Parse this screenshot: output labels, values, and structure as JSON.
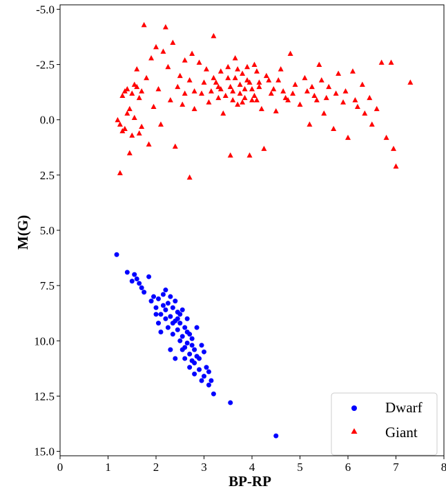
{
  "chart_data": {
    "type": "scatter",
    "xlabel": "BP-RP",
    "ylabel": "M(G)",
    "xlim": [
      0,
      8
    ],
    "ylim": [
      15.2,
      -5.2
    ],
    "y_inverted": true,
    "grid": false,
    "legend_position": "bottom-right",
    "x_ticks": [
      "0",
      "1",
      "2",
      "3",
      "4",
      "5",
      "6",
      "7",
      "8"
    ],
    "y_ticks": [
      "-5.0",
      "-2.5",
      "0.0",
      "2.5",
      "5.0",
      "7.5",
      "10.0",
      "12.5",
      "15.0"
    ],
    "series": [
      {
        "name": "Dwarf",
        "marker": "circle",
        "color": "#0000ff",
        "points": [
          [
            1.18,
            6.1
          ],
          [
            1.4,
            6.9
          ],
          [
            1.5,
            7.3
          ],
          [
            1.6,
            7.2
          ],
          [
            1.65,
            7.4
          ],
          [
            1.75,
            7.8
          ],
          [
            1.85,
            7.1
          ],
          [
            1.9,
            8.2
          ],
          [
            1.95,
            8.0
          ],
          [
            2.0,
            8.5
          ],
          [
            2.05,
            8.1
          ],
          [
            2.1,
            8.8
          ],
          [
            2.15,
            7.9
          ],
          [
            2.2,
            7.7
          ],
          [
            2.2,
            9.0
          ],
          [
            2.25,
            8.3
          ],
          [
            2.25,
            9.4
          ],
          [
            2.3,
            8.0
          ],
          [
            2.3,
            8.9
          ],
          [
            2.35,
            9.7
          ],
          [
            2.35,
            8.5
          ],
          [
            2.4,
            9.1
          ],
          [
            2.4,
            8.2
          ],
          [
            2.45,
            9.5
          ],
          [
            2.45,
            8.7
          ],
          [
            2.5,
            10.0
          ],
          [
            2.5,
            9.2
          ],
          [
            2.55,
            8.6
          ],
          [
            2.55,
            9.8
          ],
          [
            2.6,
            10.3
          ],
          [
            2.6,
            9.4
          ],
          [
            2.65,
            9.0
          ],
          [
            2.65,
            10.1
          ],
          [
            2.7,
            10.6
          ],
          [
            2.7,
            9.7
          ],
          [
            2.75,
            10.9
          ],
          [
            2.75,
            9.9
          ],
          [
            2.8,
            10.4
          ],
          [
            2.8,
            11.0
          ],
          [
            2.85,
            10.7
          ],
          [
            2.9,
            11.3
          ],
          [
            2.95,
            10.2
          ],
          [
            3.0,
            11.6
          ],
          [
            3.05,
            11.2
          ],
          [
            3.1,
            12.0
          ],
          [
            3.15,
            11.8
          ],
          [
            3.2,
            12.4
          ],
          [
            3.55,
            12.8
          ],
          [
            4.5,
            14.3
          ],
          [
            2.1,
            9.6
          ],
          [
            2.3,
            10.4
          ],
          [
            2.15,
            8.4
          ],
          [
            2.4,
            10.8
          ],
          [
            2.0,
            8.8
          ],
          [
            2.5,
            8.8
          ],
          [
            2.6,
            10.8
          ],
          [
            2.7,
            11.2
          ],
          [
            2.85,
            9.4
          ],
          [
            1.7,
            7.6
          ],
          [
            1.55,
            7.0
          ],
          [
            2.35,
            9.2
          ],
          [
            2.45,
            9.0
          ],
          [
            2.55,
            10.4
          ],
          [
            2.65,
            9.6
          ],
          [
            2.75,
            10.2
          ],
          [
            2.9,
            10.8
          ],
          [
            3.0,
            10.5
          ],
          [
            2.2,
            8.6
          ],
          [
            2.05,
            9.2
          ],
          [
            2.95,
            11.8
          ],
          [
            3.1,
            11.4
          ],
          [
            2.8,
            11.5
          ]
        ]
      },
      {
        "name": "Giant",
        "marker": "triangle",
        "color": "#ff0000",
        "points": [
          [
            1.2,
            0.0
          ],
          [
            1.25,
            2.4
          ],
          [
            1.3,
            0.5
          ],
          [
            1.35,
            -1.3
          ],
          [
            1.4,
            -0.3
          ],
          [
            1.45,
            1.5
          ],
          [
            1.5,
            0.7
          ],
          [
            1.55,
            -1.6
          ],
          [
            1.6,
            -2.3
          ],
          [
            1.65,
            -1.0
          ],
          [
            1.7,
            0.3
          ],
          [
            1.75,
            -4.3
          ],
          [
            1.8,
            -1.9
          ],
          [
            1.85,
            1.1
          ],
          [
            1.9,
            -2.8
          ],
          [
            1.95,
            -0.6
          ],
          [
            2.0,
            -3.3
          ],
          [
            2.05,
            -1.4
          ],
          [
            2.1,
            0.2
          ],
          [
            2.15,
            -3.1
          ],
          [
            2.2,
            -4.2
          ],
          [
            2.25,
            -2.4
          ],
          [
            2.3,
            -0.9
          ],
          [
            2.35,
            -3.5
          ],
          [
            2.4,
            1.2
          ],
          [
            2.5,
            -2.0
          ],
          [
            2.6,
            -1.2
          ],
          [
            2.7,
            2.6
          ],
          [
            2.75,
            -3.0
          ],
          [
            2.8,
            -0.5
          ],
          [
            2.9,
            -2.6
          ],
          [
            3.0,
            -1.7
          ],
          [
            3.1,
            -0.8
          ],
          [
            3.2,
            -3.8
          ],
          [
            3.3,
            -1.5
          ],
          [
            3.35,
            -2.2
          ],
          [
            3.4,
            -0.3
          ],
          [
            3.5,
            -1.9
          ],
          [
            3.55,
            1.6
          ],
          [
            3.6,
            -1.3
          ],
          [
            3.65,
            -2.8
          ],
          [
            3.7,
            -0.7
          ],
          [
            3.75,
            -1.6
          ],
          [
            3.8,
            -2.1
          ],
          [
            3.85,
            -1.0
          ],
          [
            3.9,
            -1.8
          ],
          [
            3.95,
            1.6
          ],
          [
            4.0,
            -1.4
          ],
          [
            4.05,
            -2.5
          ],
          [
            4.1,
            -0.9
          ],
          [
            4.15,
            -1.7
          ],
          [
            4.2,
            -0.5
          ],
          [
            4.25,
            1.3
          ],
          [
            4.3,
            -2.0
          ],
          [
            4.4,
            -1.2
          ],
          [
            4.5,
            -0.4
          ],
          [
            4.6,
            -2.3
          ],
          [
            4.7,
            -1.0
          ],
          [
            4.8,
            -3.0
          ],
          [
            4.9,
            -1.6
          ],
          [
            5.0,
            -0.7
          ],
          [
            5.1,
            -1.9
          ],
          [
            5.2,
            0.2
          ],
          [
            5.3,
            -1.1
          ],
          [
            5.4,
            -2.5
          ],
          [
            5.5,
            -0.3
          ],
          [
            5.6,
            -1.5
          ],
          [
            5.7,
            0.4
          ],
          [
            5.8,
            -2.1
          ],
          [
            5.9,
            -0.8
          ],
          [
            6.0,
            0.8
          ],
          [
            6.1,
            -2.2
          ],
          [
            6.2,
            -0.6
          ],
          [
            6.3,
            -1.6
          ],
          [
            6.5,
            0.2
          ],
          [
            6.6,
            -0.5
          ],
          [
            6.7,
            -2.6
          ],
          [
            6.8,
            0.8
          ],
          [
            6.9,
            -2.6
          ],
          [
            6.95,
            1.3
          ],
          [
            7.0,
            2.1
          ],
          [
            7.3,
            -1.7
          ],
          [
            3.45,
            -1.1
          ],
          [
            3.55,
            -1.5
          ],
          [
            3.65,
            -1.9
          ],
          [
            3.75,
            -1.2
          ],
          [
            3.85,
            -1.4
          ],
          [
            3.95,
            -1.7
          ],
          [
            4.05,
            -1.1
          ],
          [
            4.15,
            -1.5
          ],
          [
            3.3,
            -1.0
          ],
          [
            3.5,
            -2.4
          ],
          [
            3.7,
            -2.3
          ],
          [
            3.9,
            -2.4
          ],
          [
            4.1,
            -2.2
          ],
          [
            3.6,
            -0.9
          ],
          [
            3.8,
            -0.8
          ],
          [
            4.0,
            -0.9
          ],
          [
            3.2,
            -1.9
          ],
          [
            4.35,
            -1.8
          ],
          [
            2.95,
            -1.2
          ],
          [
            3.05,
            -2.3
          ],
          [
            3.15,
            -1.3
          ],
          [
            3.25,
            -1.7
          ],
          [
            3.35,
            -1.4
          ],
          [
            4.45,
            -1.4
          ],
          [
            4.55,
            -1.8
          ],
          [
            4.65,
            -1.3
          ],
          [
            4.75,
            -0.9
          ],
          [
            4.85,
            -1.2
          ],
          [
            2.7,
            -1.8
          ],
          [
            2.6,
            -2.7
          ],
          [
            2.45,
            -1.5
          ],
          [
            2.55,
            -0.7
          ],
          [
            2.8,
            -1.3
          ],
          [
            1.4,
            -1.4
          ],
          [
            1.5,
            -1.2
          ],
          [
            1.6,
            -1.5
          ],
          [
            1.7,
            -1.3
          ],
          [
            1.3,
            -1.1
          ],
          [
            1.45,
            -0.5
          ],
          [
            1.55,
            -0.1
          ],
          [
            1.65,
            0.6
          ],
          [
            1.25,
            0.2
          ],
          [
            1.35,
            0.4
          ],
          [
            5.15,
            -1.3
          ],
          [
            5.35,
            -0.9
          ],
          [
            5.55,
            -1.0
          ],
          [
            5.75,
            -1.2
          ],
          [
            5.95,
            -1.3
          ],
          [
            6.15,
            -0.9
          ],
          [
            6.35,
            -0.3
          ],
          [
            6.45,
            -1.0
          ],
          [
            5.25,
            -1.5
          ],
          [
            5.45,
            -1.8
          ]
        ]
      }
    ]
  }
}
